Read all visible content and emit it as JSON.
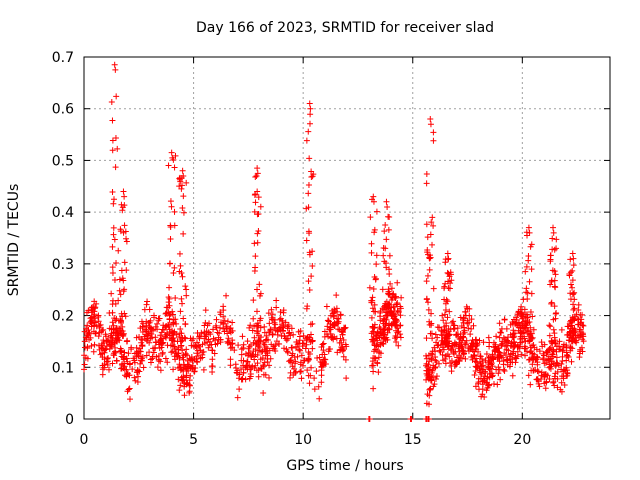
{
  "chart_data": {
    "type": "scatter",
    "title": "Day 166 of 2023, SRMTID for receiver slad",
    "xlabel": "GPS time / hours",
    "ylabel": "SRMTID / TECUs",
    "xlim": [
      0,
      24
    ],
    "ylim": [
      0,
      0.7
    ],
    "xticks": [
      0,
      5,
      10,
      15,
      20
    ],
    "yticks": [
      0,
      0.1,
      0.2,
      0.3,
      0.4,
      0.5,
      0.6,
      0.7
    ],
    "xtick_labels": [
      "0",
      "5",
      "10",
      "15",
      "20"
    ],
    "ytick_labels": [
      "0",
      "0.1",
      "0.2",
      "0.3",
      "0.4",
      "0.5",
      "0.6",
      "0.7"
    ],
    "grid": true,
    "marker": "+",
    "color": "#ff0000",
    "series": [
      {
        "name": "SRMTID",
        "description": "dense cloud of satellite-arc measurements",
        "segments": [
          {
            "x_start": 0.0,
            "x_end": 12.0,
            "base": 0.14,
            "spread": 0.08,
            "count": 900
          },
          {
            "x_start": 13.1,
            "x_end": 14.5,
            "base": 0.17,
            "spread": 0.08,
            "count": 150
          },
          {
            "x_start": 15.6,
            "x_end": 22.8,
            "base": 0.13,
            "spread": 0.08,
            "count": 700
          }
        ],
        "spikes": [
          {
            "x": 1.4,
            "peak": 0.685
          },
          {
            "x": 1.8,
            "peak": 0.44
          },
          {
            "x": 4.0,
            "peak": 0.515
          },
          {
            "x": 4.5,
            "peak": 0.48
          },
          {
            "x": 7.9,
            "peak": 0.485
          },
          {
            "x": 10.3,
            "peak": 0.61
          },
          {
            "x": 13.2,
            "peak": 0.43
          },
          {
            "x": 13.8,
            "peak": 0.42
          },
          {
            "x": 15.8,
            "peak": 0.58
          },
          {
            "x": 16.6,
            "peak": 0.32
          },
          {
            "x": 20.3,
            "peak": 0.37
          },
          {
            "x": 21.4,
            "peak": 0.37
          },
          {
            "x": 22.3,
            "peak": 0.32
          }
        ],
        "baseline_marks": [
          13.0,
          14.9,
          15.6,
          15.7
        ]
      }
    ]
  }
}
